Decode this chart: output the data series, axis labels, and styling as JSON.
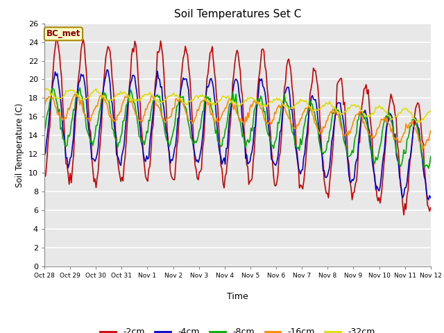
{
  "title": "Soil Temperatures Set C",
  "xlabel": "Time",
  "ylabel": "Soil Temperature (C)",
  "ylim": [
    0,
    26
  ],
  "yticks": [
    0,
    2,
    4,
    6,
    8,
    10,
    12,
    14,
    16,
    18,
    20,
    22,
    24,
    26
  ],
  "xtick_labels": [
    "Oct 28",
    "Oct 29",
    "Oct 30",
    "Oct 31",
    "Nov 1",
    "Nov 2",
    "Nov 3",
    "Nov 4",
    "Nov 5",
    "Nov 6",
    "Nov 7",
    "Nov 8",
    "Nov 9",
    "Nov 10",
    "Nov 11",
    "Nov 12"
  ],
  "series_colors": [
    "#cc0000",
    "#0000cc",
    "#00aa00",
    "#ff8800",
    "#dddd00"
  ],
  "series_labels": [
    "-2cm",
    "-4cm",
    "-8cm",
    "-16cm",
    "-32cm"
  ],
  "line_width": 1.2,
  "legend_label": "BC_met",
  "legend_box_color": "#ffffcc",
  "legend_box_edge": "#aa8800",
  "plot_bg_color": "#e8e8e8",
  "title_fontsize": 11
}
